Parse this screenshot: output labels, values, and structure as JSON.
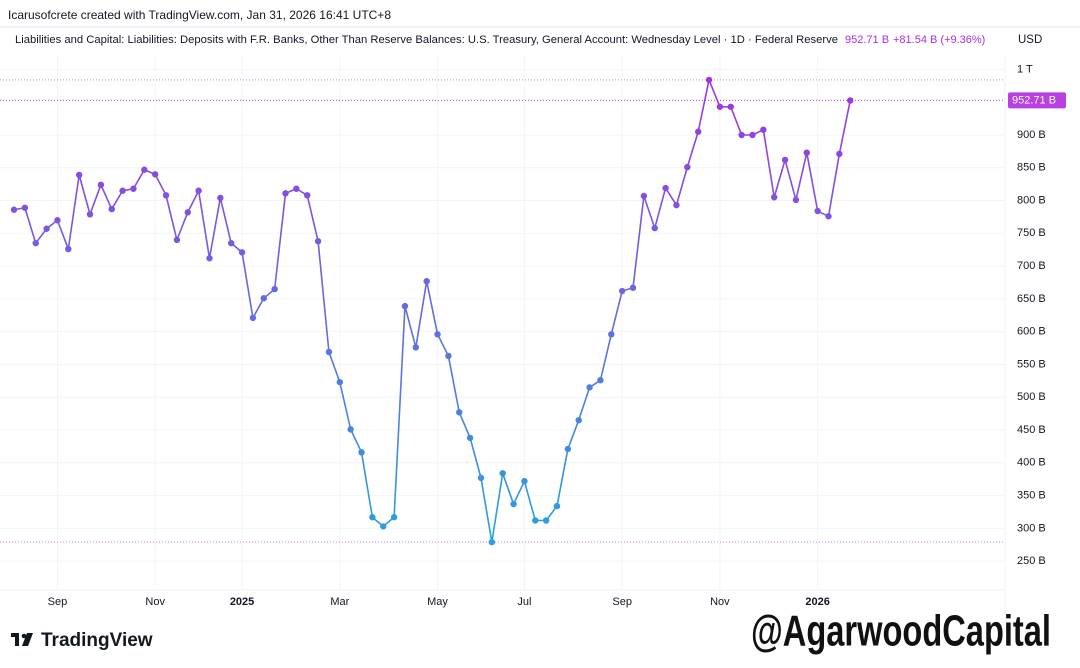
{
  "header": "Icarusofcrete created with TradingView.com, Jan 31, 2026 16:41 UTC+8",
  "chart_data": {
    "type": "line",
    "title": "Liabilities and Capital: Liabilities: Deposits with F.R. Banks, Other Than Reserve Balances: U.S. Treasury, General Account: Wednesday Level · 1D · Federal Reserve",
    "last_value_label": "952.71 B",
    "change_label": "+81.54 B (+9.36%)",
    "currency": "USD",
    "categories": [
      null,
      null,
      null,
      null,
      "Sep",
      null,
      null,
      null,
      null,
      null,
      null,
      null,
      null,
      "Nov",
      null,
      null,
      null,
      null,
      null,
      null,
      null,
      "2025",
      null,
      null,
      null,
      null,
      null,
      null,
      null,
      null,
      "Mar",
      null,
      null,
      null,
      null,
      null,
      null,
      null,
      null,
      "May",
      null,
      null,
      null,
      null,
      null,
      null,
      null,
      "Jul",
      null,
      null,
      null,
      null,
      null,
      null,
      null,
      null,
      "Sep",
      null,
      null,
      null,
      null,
      null,
      null,
      null,
      null,
      "Nov",
      null,
      null,
      null,
      null,
      null,
      null,
      null,
      null,
      "2026",
      null,
      null,
      null
    ],
    "values": [
      786,
      789,
      735,
      757,
      770,
      726,
      839,
      779,
      824,
      787,
      815,
      818,
      847,
      840,
      808,
      740,
      782,
      815,
      712,
      804,
      735,
      721,
      621,
      651,
      665,
      811,
      818,
      808,
      738,
      569,
      523,
      451,
      416,
      317,
      303,
      317,
      639,
      576,
      677,
      596,
      563,
      477,
      438,
      377,
      279,
      384,
      337,
      372,
      312,
      312,
      334,
      421,
      465,
      515,
      526,
      596,
      662,
      667,
      807,
      758,
      819,
      793,
      851,
      905,
      984,
      943,
      943,
      900,
      900,
      908,
      805,
      862,
      801,
      873,
      784,
      776,
      871.17,
      952.71
    ],
    "colors": [
      "#a92ee2",
      "#1aaee0"
    ],
    "ylim": [
      206,
      1022
    ],
    "yticks": [
      {
        "value": 250,
        "label": "250 B"
      },
      {
        "value": 300,
        "label": "300 B"
      },
      {
        "value": 350,
        "label": "350 B"
      },
      {
        "value": 400,
        "label": "400 B"
      },
      {
        "value": 450,
        "label": "450 B"
      },
      {
        "value": 500,
        "label": "500 B"
      },
      {
        "value": 550,
        "label": "550 B"
      },
      {
        "value": 600,
        "label": "600 B"
      },
      {
        "value": 650,
        "label": "650 B"
      },
      {
        "value": 700,
        "label": "700 B"
      },
      {
        "value": 750,
        "label": "750 B"
      },
      {
        "value": 800,
        "label": "800 B"
      },
      {
        "value": 850,
        "label": "850 B"
      },
      {
        "value": 900,
        "label": "900 B"
      },
      {
        "value": 1000,
        "label": "1 T"
      }
    ],
    "grid": true
  },
  "brand": "TradingView",
  "watermark": "@AgarwoodCapital"
}
